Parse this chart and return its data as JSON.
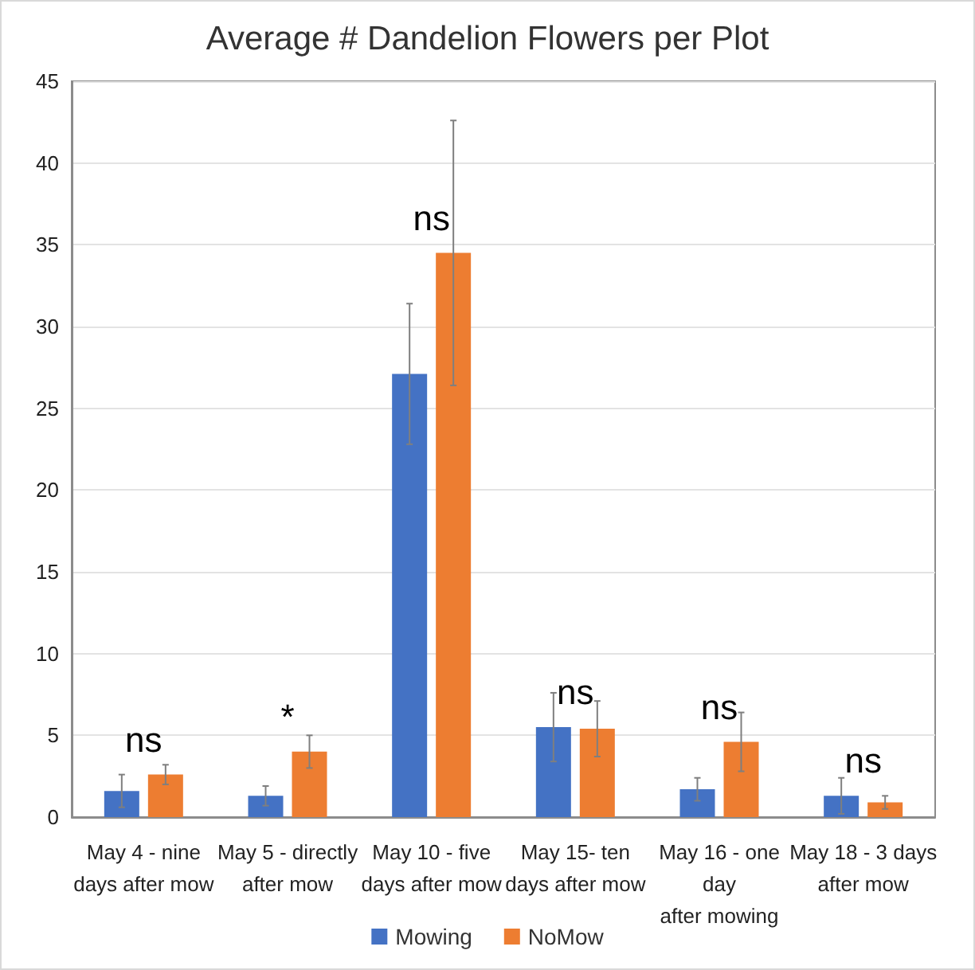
{
  "chart_data": {
    "type": "bar",
    "title": "Average # Dandelion Flowers per Plot",
    "categories": [
      "May 4 - nine\ndays after mow",
      "May 5 - directly\nafter mow",
      "May 10 - five\ndays after mow",
      "May 15- ten\ndays after mow",
      "May 16 - one\nday\nafter mowing",
      "May 18 - 3 days\nafter mow"
    ],
    "series": [
      {
        "name": "Mowing",
        "color": "#4472c4",
        "values": [
          1.6,
          1.3,
          27.1,
          5.5,
          1.7,
          1.3
        ],
        "errors": [
          1.0,
          0.6,
          4.3,
          2.1,
          0.7,
          1.1
        ]
      },
      {
        "name": "NoMow",
        "color": "#ed7d31",
        "values": [
          2.6,
          4.0,
          34.5,
          5.4,
          4.6,
          0.9
        ],
        "errors": [
          0.6,
          1.0,
          8.1,
          1.7,
          1.8,
          0.4
        ]
      }
    ],
    "ylim": [
      0,
      45
    ],
    "yticks": [
      0,
      5,
      10,
      15,
      20,
      25,
      30,
      35,
      40,
      45
    ],
    "grid": "y",
    "legend": "bottom",
    "annotations": [
      "ns",
      "*",
      "ns",
      "ns",
      "ns",
      "ns"
    ]
  }
}
